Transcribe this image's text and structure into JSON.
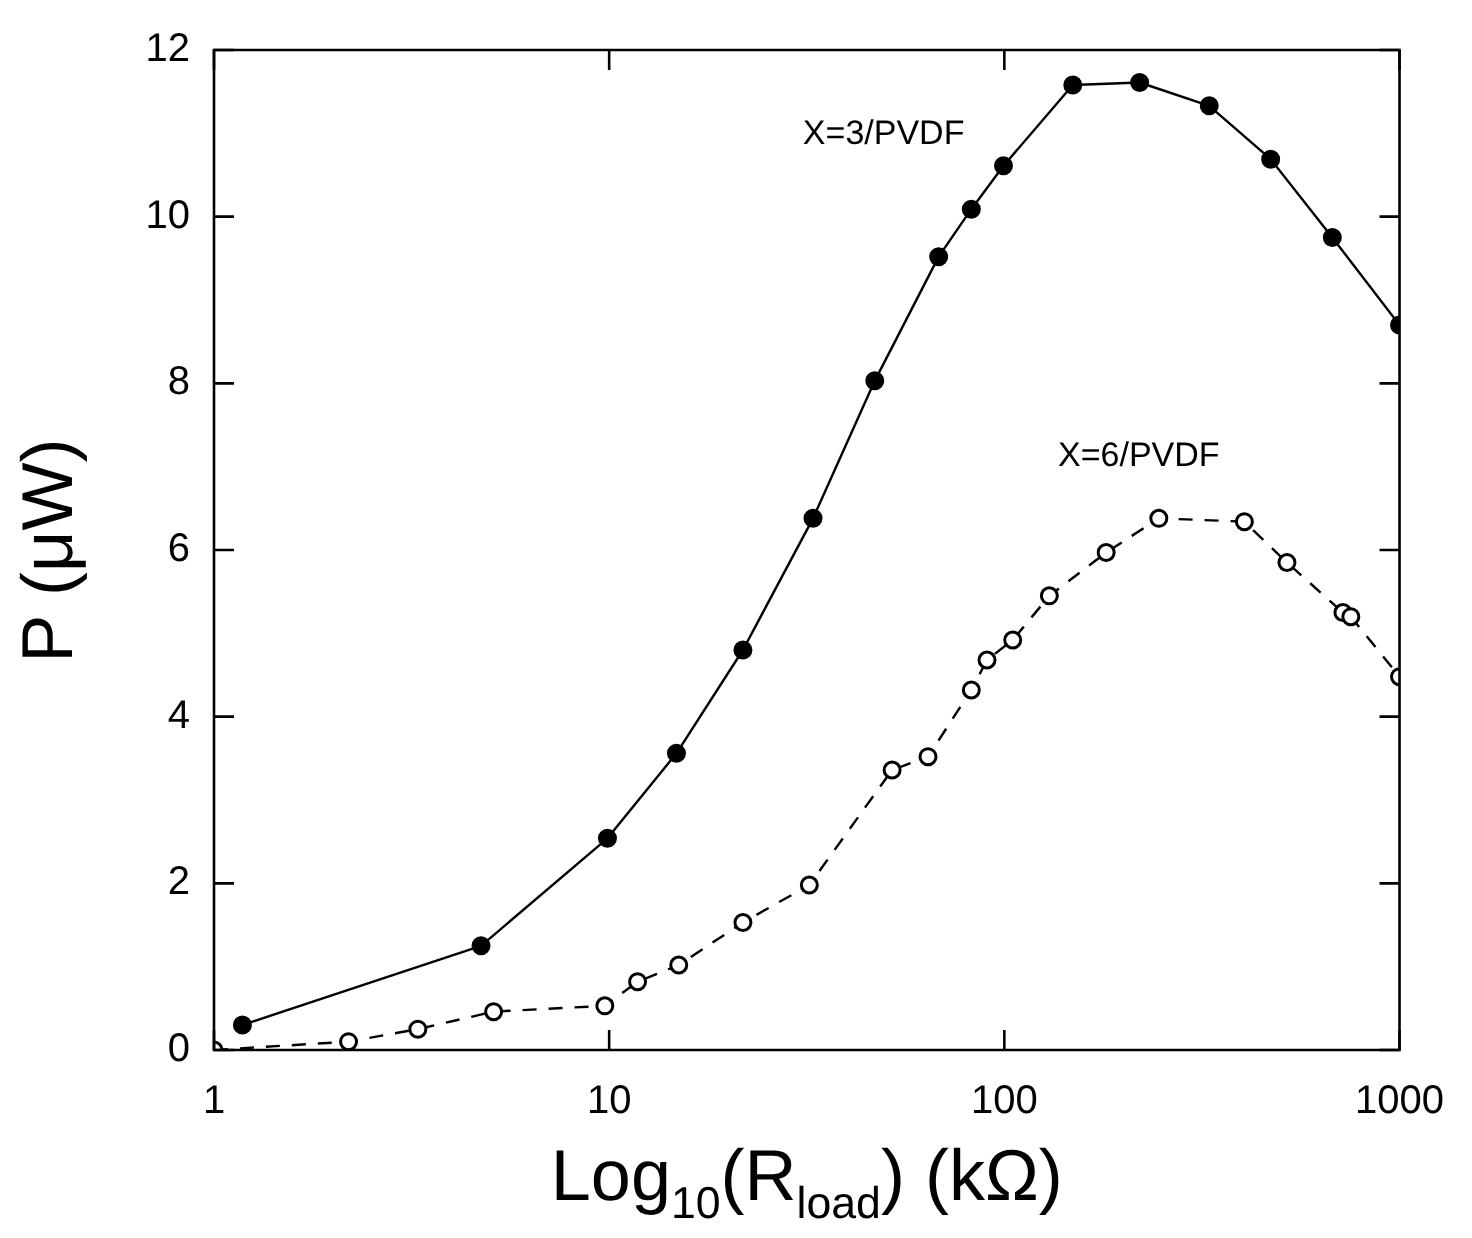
{
  "chart_data": {
    "type": "line",
    "xlabel": "Log$_{10}$(R$_{load}$) (kΩ)",
    "ylabel": "P (μW)",
    "log": "x",
    "xlim": [
      1,
      1000
    ],
    "xticks": [
      1,
      10,
      100,
      1000
    ],
    "ylim": [
      0,
      12
    ],
    "yticks": [
      0,
      2,
      4,
      6,
      8,
      10,
      12
    ],
    "grid": false,
    "legend": false,
    "marker": "circle",
    "series": [
      {
        "name": "X=3/PVDF",
        "color": "#000000",
        "line_style": "solid",
        "x": [
          1.18,
          4.74,
          9.9,
          14.8,
          21.8,
          32.8,
          47,
          68.2,
          82.5,
          99.5,
          149,
          220,
          330,
          472,
          676,
          1000
        ],
        "values": [
          0.3,
          1.25,
          2.54,
          3.56,
          4.8,
          6.38,
          8.03,
          9.52,
          10.09,
          10.61,
          11.58,
          11.61,
          11.33,
          10.69,
          9.75,
          8.7
        ]
      },
      {
        "name": "X=6/PVDF",
        "color": "#000000",
        "line_style": "dashed",
        "x": [
          1,
          2.19,
          3.28,
          5.1,
          9.75,
          11.8,
          15,
          21.8,
          32.1,
          52,
          64.1,
          82.5,
          90.4,
          105,
          130,
          181,
          246,
          405,
          519,
          719,
          753,
          1000
        ],
        "values": [
          0,
          0.1,
          0.25,
          0.46,
          0.53,
          0.82,
          1.02,
          1.53,
          1.98,
          3.36,
          3.52,
          4.32,
          4.68,
          4.92,
          5.45,
          5.97,
          6.38,
          6.34,
          5.85,
          5.25,
          5.2,
          4.48
        ]
      }
    ]
  }
}
